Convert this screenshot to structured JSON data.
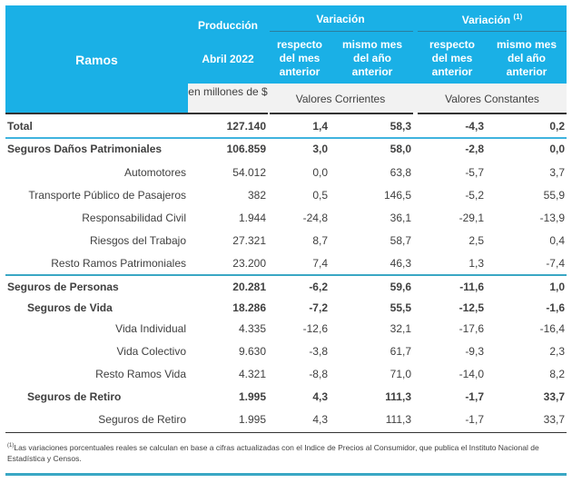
{
  "header": {
    "ramos": "Ramos",
    "produccion": "Producción",
    "periodo": "Abril 2022",
    "variacion": "Variación",
    "variacion_real": "Variación",
    "footnote_mark": "(1)",
    "respecto": "respecto del mes anterior",
    "mismo_mes": "mismo mes del año anterior",
    "unidad": "en millones de $",
    "corrientes": "Valores Corrientes",
    "constantes": "Valores Constantes"
  },
  "rows": [
    {
      "label": "Total",
      "values": [
        "127.140",
        "1,4",
        "58,3",
        "-4,3",
        "0,2"
      ]
    },
    {
      "label": "Seguros Daños Patrimoniales",
      "values": [
        "106.859",
        "3,0",
        "58,0",
        "-2,8",
        "0,0"
      ]
    },
    {
      "label": "Automotores",
      "values": [
        "54.012",
        "0,0",
        "63,8",
        "-5,7",
        "3,7"
      ]
    },
    {
      "label": "Transporte Público de Pasajeros",
      "values": [
        "382",
        "0,5",
        "146,5",
        "-5,2",
        "55,9"
      ]
    },
    {
      "label": "Responsabilidad Civil",
      "values": [
        "1.944",
        "-24,8",
        "36,1",
        "-29,1",
        "-13,9"
      ]
    },
    {
      "label": "Riesgos del Trabajo",
      "values": [
        "27.321",
        "8,7",
        "58,7",
        "2,5",
        "0,4"
      ]
    },
    {
      "label": "Resto Ramos Patrimoniales",
      "values": [
        "23.200",
        "7,4",
        "46,3",
        "1,3",
        "-7,4"
      ]
    },
    {
      "label": "Seguros de Personas",
      "values": [
        "20.281",
        "-6,2",
        "59,6",
        "-11,6",
        "1,0"
      ]
    },
    {
      "label": "Seguros de Vida",
      "values": [
        "18.286",
        "-7,2",
        "55,5",
        "-12,5",
        "-1,6"
      ]
    },
    {
      "label": "Vida Individual",
      "values": [
        "4.335",
        "-12,6",
        "32,1",
        "-17,6",
        "-16,4"
      ]
    },
    {
      "label": "Vida Colectivo",
      "values": [
        "9.630",
        "-3,8",
        "61,7",
        "-9,3",
        "2,3"
      ]
    },
    {
      "label": "Resto Ramos Vida",
      "values": [
        "4.321",
        "-8,8",
        "71,0",
        "-14,0",
        "8,2"
      ]
    },
    {
      "label": "Seguros de Retiro",
      "values": [
        "1.995",
        "4,3",
        "111,3",
        "-1,7",
        "33,7"
      ]
    },
    {
      "label": "Seguros de Retiro",
      "values": [
        "1.995",
        "4,3",
        "111,3",
        "-1,7",
        "33,7"
      ]
    }
  ],
  "footnote": {
    "mark": "(1)",
    "text": "Las variaciones porcentuales reales se calculan en base a cifras actualizadas con  el Indice de Precios al Consumidor, que publica el Instituto Nacional de Estadística y Censos."
  },
  "colors": {
    "header": "#1ab0e6",
    "accent_line": "#3aa7c4"
  }
}
